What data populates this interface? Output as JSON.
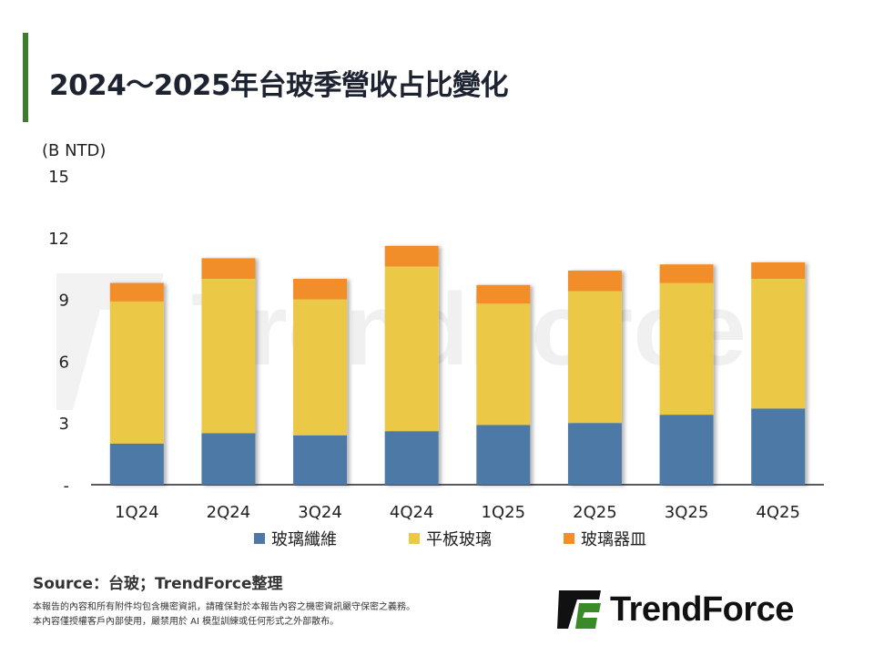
{
  "title": "2024～2025年台玻季營收占比變化",
  "chart_data": {
    "type": "bar",
    "stacked": true,
    "title": "2024～2025年台玻季營收占比變化",
    "ylabel": "(B NTD)",
    "xlabel": "",
    "ylim": [
      0,
      15
    ],
    "yticks": [
      0,
      3,
      6,
      9,
      12,
      15
    ],
    "ytick_labels": [
      "-",
      "3",
      "6",
      "9",
      "12",
      "15"
    ],
    "grid": false,
    "legend_position": "bottom",
    "categories": [
      "1Q24",
      "2Q24",
      "3Q24",
      "4Q24",
      "1Q25",
      "2Q25",
      "3Q25",
      "4Q25"
    ],
    "series": [
      {
        "name": "玻璃纖維",
        "color": "#4e79a7",
        "values": [
          2.0,
          2.5,
          2.4,
          2.6,
          2.9,
          3.0,
          3.4,
          3.7
        ]
      },
      {
        "name": "平板玻璃",
        "color": "#ebc946",
        "values": [
          6.9,
          7.5,
          6.6,
          8.0,
          5.9,
          6.4,
          6.4,
          6.3
        ]
      },
      {
        "name": "玻璃器皿",
        "color": "#f28e2b",
        "values": [
          0.9,
          1.0,
          1.0,
          1.0,
          0.9,
          1.0,
          0.9,
          0.8
        ]
      }
    ]
  },
  "footer": {
    "source": "Source：台玻；TrendForce整理",
    "disclaimer_1": "本報告的內容和所有附件均包含機密資訊，請確保對於本報告內容之機密資訊嚴守保密之義務。",
    "disclaimer_2": "本內容僅授權客戶內部使用，嚴禁用於 AI 模型訓練或任何形式之外部散布。",
    "logo": "TrendForce",
    "watermark": "TrendForce"
  }
}
